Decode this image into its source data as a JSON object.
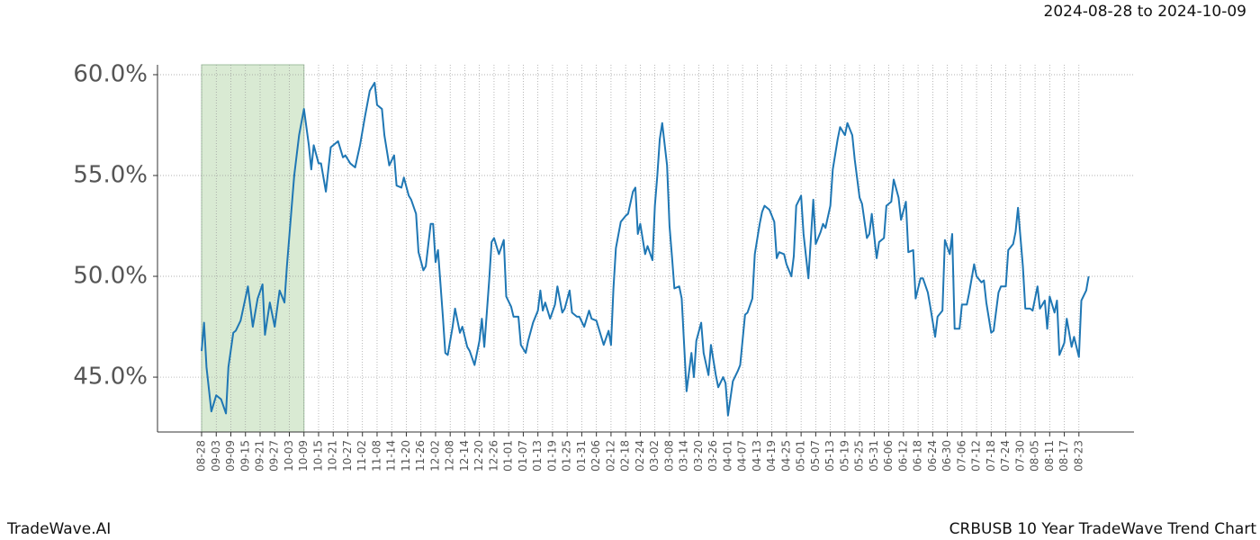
{
  "chart_data": {
    "type": "line",
    "date_range": "2024-08-28 to 2024-10-09",
    "brand": "TradeWave.AI",
    "title": "CRBUSB 10 Year TradeWave Trend Chart",
    "color": "#1f77b4",
    "highlight_color": "#d9ead3",
    "highlight_x": [
      0,
      42
    ],
    "grid": true,
    "xlim": [
      -18.1,
      382.6
    ],
    "ylim": [
      42.28,
      60.49
    ],
    "yticks": [
      {
        "value": 45,
        "label": "45.0%"
      },
      {
        "value": 50,
        "label": "50.0%"
      },
      {
        "value": 55,
        "label": "55.0%"
      },
      {
        "value": 60,
        "label": "60.0%"
      }
    ],
    "xticks": [
      {
        "value": 0,
        "label": "08-28"
      },
      {
        "value": 6,
        "label": "09-03"
      },
      {
        "value": 12,
        "label": "09-09"
      },
      {
        "value": 18,
        "label": "09-15"
      },
      {
        "value": 24,
        "label": "09-21"
      },
      {
        "value": 30,
        "label": "09-27"
      },
      {
        "value": 36,
        "label": "10-03"
      },
      {
        "value": 42,
        "label": "10-09"
      },
      {
        "value": 48,
        "label": "10-15"
      },
      {
        "value": 54,
        "label": "10-21"
      },
      {
        "value": 60,
        "label": "10-27"
      },
      {
        "value": 66,
        "label": "11-02"
      },
      {
        "value": 72,
        "label": "11-08"
      },
      {
        "value": 78,
        "label": "11-14"
      },
      {
        "value": 84,
        "label": "11-20"
      },
      {
        "value": 90,
        "label": "11-26"
      },
      {
        "value": 96,
        "label": "12-02"
      },
      {
        "value": 102,
        "label": "12-08"
      },
      {
        "value": 108,
        "label": "12-14"
      },
      {
        "value": 114,
        "label": "12-20"
      },
      {
        "value": 120,
        "label": "12-26"
      },
      {
        "value": 126,
        "label": "01-01"
      },
      {
        "value": 132,
        "label": "01-07"
      },
      {
        "value": 138,
        "label": "01-13"
      },
      {
        "value": 144,
        "label": "01-19"
      },
      {
        "value": 150,
        "label": "01-25"
      },
      {
        "value": 156,
        "label": "01-31"
      },
      {
        "value": 162,
        "label": "02-06"
      },
      {
        "value": 168,
        "label": "02-12"
      },
      {
        "value": 174,
        "label": "02-18"
      },
      {
        "value": 180,
        "label": "02-24"
      },
      {
        "value": 186,
        "label": "03-02"
      },
      {
        "value": 192,
        "label": "03-08"
      },
      {
        "value": 198,
        "label": "03-14"
      },
      {
        "value": 204,
        "label": "03-20"
      },
      {
        "value": 210,
        "label": "03-26"
      },
      {
        "value": 216,
        "label": "04-01"
      },
      {
        "value": 222,
        "label": "04-07"
      },
      {
        "value": 228,
        "label": "04-13"
      },
      {
        "value": 234,
        "label": "04-19"
      },
      {
        "value": 240,
        "label": "04-25"
      },
      {
        "value": 246,
        "label": "05-01"
      },
      {
        "value": 252,
        "label": "05-07"
      },
      {
        "value": 258,
        "label": "05-13"
      },
      {
        "value": 264,
        "label": "05-19"
      },
      {
        "value": 270,
        "label": "05-25"
      },
      {
        "value": 276,
        "label": "05-31"
      },
      {
        "value": 282,
        "label": "06-06"
      },
      {
        "value": 288,
        "label": "06-12"
      },
      {
        "value": 294,
        "label": "06-18"
      },
      {
        "value": 300,
        "label": "06-24"
      },
      {
        "value": 306,
        "label": "06-30"
      },
      {
        "value": 312,
        "label": "07-06"
      },
      {
        "value": 318,
        "label": "07-12"
      },
      {
        "value": 324,
        "label": "07-18"
      },
      {
        "value": 330,
        "label": "07-24"
      },
      {
        "value": 336,
        "label": "07-30"
      },
      {
        "value": 342,
        "label": "08-05"
      },
      {
        "value": 348,
        "label": "08-11"
      },
      {
        "value": 354,
        "label": "08-17"
      },
      {
        "value": 360,
        "label": "08-23"
      }
    ],
    "x": [
      0,
      1,
      2,
      4,
      6,
      8,
      10,
      11,
      13,
      14,
      16,
      19,
      21,
      23,
      25,
      26,
      28,
      30,
      32,
      34,
      35,
      38,
      40,
      42,
      44,
      45,
      46,
      48,
      49,
      51,
      53,
      56,
      58,
      59,
      61,
      63,
      65,
      67,
      69,
      71,
      72,
      74,
      75,
      77,
      79,
      80,
      82,
      83,
      85,
      86,
      88,
      89,
      91,
      92,
      94,
      95,
      96,
      97,
      99,
      100,
      101,
      103,
      104,
      106,
      107,
      109,
      110,
      112,
      114,
      115,
      116,
      118,
      119,
      120,
      122,
      124,
      125,
      127,
      128,
      130,
      131,
      133,
      134,
      136,
      138,
      139,
      140,
      141,
      143,
      145,
      146,
      148,
      149,
      151,
      152,
      154,
      155,
      157,
      159,
      160,
      162,
      164,
      165,
      167,
      168,
      169,
      170,
      172,
      174,
      175,
      177,
      178,
      179,
      180,
      182,
      183,
      185,
      186,
      187,
      188,
      189,
      191,
      192,
      193,
      194,
      196,
      197,
      198,
      199,
      201,
      202,
      203,
      205,
      206,
      208,
      209,
      211,
      212,
      214,
      215,
      216,
      218,
      220,
      221,
      223,
      224,
      226,
      227,
      229,
      230,
      231,
      233,
      235,
      236,
      237,
      239,
      240,
      242,
      243,
      244,
      246,
      247,
      249,
      251,
      252,
      254,
      255,
      256,
      258,
      259,
      261,
      262,
      264,
      265,
      267,
      268,
      270,
      271,
      273,
      274,
      275,
      277,
      278,
      280,
      281,
      283,
      284,
      286,
      287,
      289,
      290,
      292,
      293,
      295,
      296,
      298,
      299,
      301,
      302,
      304,
      305,
      307,
      308,
      309,
      311,
      312,
      314,
      315,
      317,
      318,
      320,
      321,
      322,
      324,
      325,
      327,
      328,
      330,
      331,
      333,
      334,
      335,
      337,
      338,
      340,
      341,
      343,
      344,
      346,
      347,
      348,
      350,
      351,
      352,
      354,
      355,
      357,
      358,
      360,
      361,
      363,
      364
    ],
    "values": [
      46.3,
      47.7,
      45.5,
      43.3,
      44.1,
      43.9,
      43.2,
      45.5,
      47.2,
      47.3,
      47.8,
      49.5,
      47.5,
      48.9,
      49.6,
      47.1,
      48.7,
      47.5,
      49.3,
      48.7,
      50.5,
      55.0,
      57.0,
      58.3,
      56.5,
      55.3,
      56.5,
      55.6,
      55.6,
      54.2,
      56.4,
      56.7,
      55.9,
      56.0,
      55.6,
      55.4,
      56.5,
      57.9,
      59.2,
      59.6,
      58.5,
      58.3,
      57.0,
      55.5,
      56.0,
      54.5,
      54.4,
      54.9,
      54.0,
      53.8,
      53.1,
      51.2,
      50.3,
      50.5,
      52.6,
      52.6,
      50.7,
      51.3,
      48.0,
      46.2,
      46.1,
      47.5,
      48.4,
      47.2,
      47.5,
      46.5,
      46.3,
      45.6,
      46.8,
      47.9,
      46.5,
      49.8,
      51.7,
      51.9,
      51.1,
      51.8,
      49.0,
      48.5,
      48.0,
      48.0,
      46.6,
      46.2,
      46.8,
      47.7,
      48.3,
      49.3,
      48.3,
      48.7,
      47.9,
      48.6,
      49.5,
      48.2,
      48.4,
      49.3,
      48.2,
      48.0,
      48.0,
      47.5,
      48.3,
      47.9,
      47.8,
      47.0,
      46.6,
      47.3,
      46.6,
      49.4,
      51.4,
      52.7,
      53.0,
      53.1,
      54.2,
      54.4,
      52.1,
      52.6,
      51.1,
      51.5,
      50.8,
      53.5,
      55.0,
      56.8,
      57.6,
      55.5,
      52.5,
      51.0,
      49.4,
      49.5,
      48.9,
      46.6,
      44.3,
      46.2,
      45.0,
      46.8,
      47.7,
      46.2,
      45.1,
      46.6,
      45.1,
      44.5,
      45.0,
      44.7,
      43.1,
      44.8,
      45.3,
      45.6,
      48.1,
      48.2,
      48.9,
      51.1,
      52.6,
      53.2,
      53.5,
      53.3,
      52.7,
      50.9,
      51.2,
      51.1,
      50.6,
      50.0,
      51.0,
      53.5,
      54.0,
      52.1,
      49.9,
      53.8,
      51.6,
      52.2,
      52.6,
      52.4,
      53.5,
      55.3,
      56.8,
      57.4,
      57.0,
      57.6,
      57.0,
      55.8,
      53.9,
      53.6,
      51.9,
      52.1,
      53.1,
      50.9,
      51.7,
      51.9,
      53.5,
      53.7,
      54.8,
      53.9,
      52.8,
      53.7,
      51.2,
      51.3,
      48.9,
      49.9,
      49.9,
      49.2,
      48.5,
      47.0,
      48.0,
      48.3,
      51.8,
      51.1,
      52.1,
      47.4,
      47.4,
      48.6,
      48.6,
      49.2,
      50.6,
      50.0,
      49.7,
      49.8,
      48.7,
      47.2,
      47.3,
      49.2,
      49.5,
      49.5,
      51.3,
      51.6,
      52.2,
      53.4,
      50.5,
      48.4,
      48.4,
      48.3,
      49.5,
      48.4,
      48.8,
      47.4,
      49.0,
      48.2,
      48.8,
      46.1,
      46.7,
      47.9,
      46.5,
      47.0,
      46.0,
      48.8,
      49.3,
      50.0
    ]
  }
}
